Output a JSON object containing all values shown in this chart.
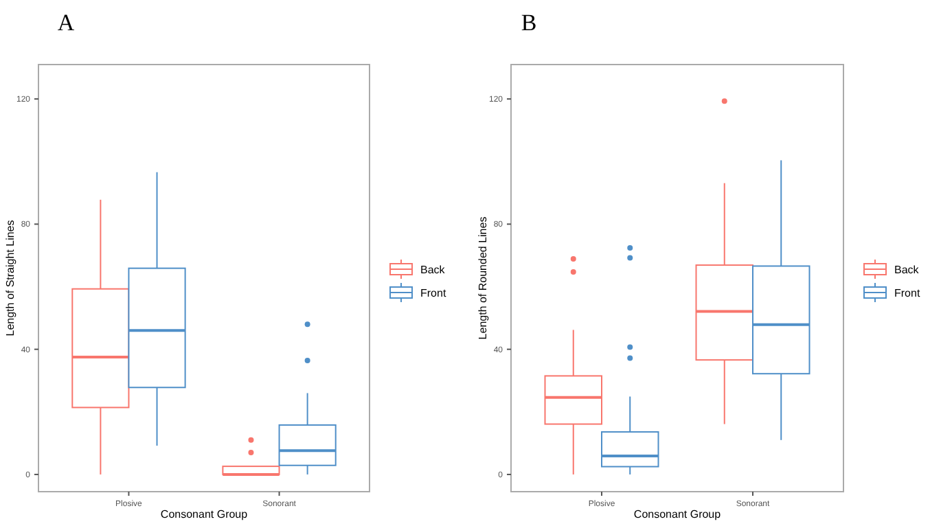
{
  "chart_data": [
    {
      "type": "box",
      "title": "A",
      "xlabel": "Consonant Group",
      "ylabel": "Length of Straight Lines",
      "categories": [
        "Plosive",
        "Sonorant"
      ],
      "ylim": [
        -5.5,
        131
      ],
      "yticks": [
        0,
        40,
        80,
        120
      ],
      "legend": "right",
      "grid": false,
      "series": [
        {
          "name": "Back",
          "color": "#f8766d",
          "boxes": [
            {
              "low": 0,
              "q1": 21.4,
              "median": 37.5,
              "q3": 59.3,
              "high": 87.8
            },
            {
              "low": 0,
              "q1": 0,
              "median": 0,
              "q3": 2.6,
              "high": 2.6,
              "outliers": [
                7,
                11
              ]
            }
          ]
        },
        {
          "name": "Front",
          "color": "#4f8fc8",
          "boxes": [
            {
              "low": 9.2,
              "q1": 27.8,
              "median": 46,
              "q3": 65.9,
              "high": 96.6
            },
            {
              "low": 0,
              "q1": 2.9,
              "median": 7.6,
              "q3": 15.8,
              "high": 26,
              "outliers": [
                36.4,
                48
              ]
            }
          ]
        }
      ]
    },
    {
      "type": "box",
      "title": "B",
      "xlabel": "Consonant Group",
      "ylabel": "Length of Rounded Lines",
      "categories": [
        "Plosive",
        "Sonorant"
      ],
      "ylim": [
        -5.5,
        131
      ],
      "yticks": [
        0,
        40,
        80,
        120
      ],
      "legend": "right",
      "grid": false,
      "series": [
        {
          "name": "Back",
          "color": "#f8766d",
          "boxes": [
            {
              "low": 0,
              "q1": 16.1,
              "median": 24.6,
              "q3": 31.5,
              "high": 46.2,
              "outliers": [
                64.7,
                68.9
              ]
            },
            {
              "low": 16.1,
              "q1": 36.6,
              "median": 52.1,
              "q3": 66.9,
              "high": 93.1,
              "outliers": [
                119.3
              ]
            }
          ]
        },
        {
          "name": "Front",
          "color": "#4f8fc8",
          "boxes": [
            {
              "low": 0,
              "q1": 2.5,
              "median": 5.9,
              "q3": 13.6,
              "high": 24.9,
              "outliers": [
                37.2,
                40.7,
                69.2,
                72.4
              ]
            },
            {
              "low": 11,
              "q1": 32.2,
              "median": 47.9,
              "q3": 66.6,
              "high": 100.4
            }
          ]
        }
      ]
    }
  ]
}
